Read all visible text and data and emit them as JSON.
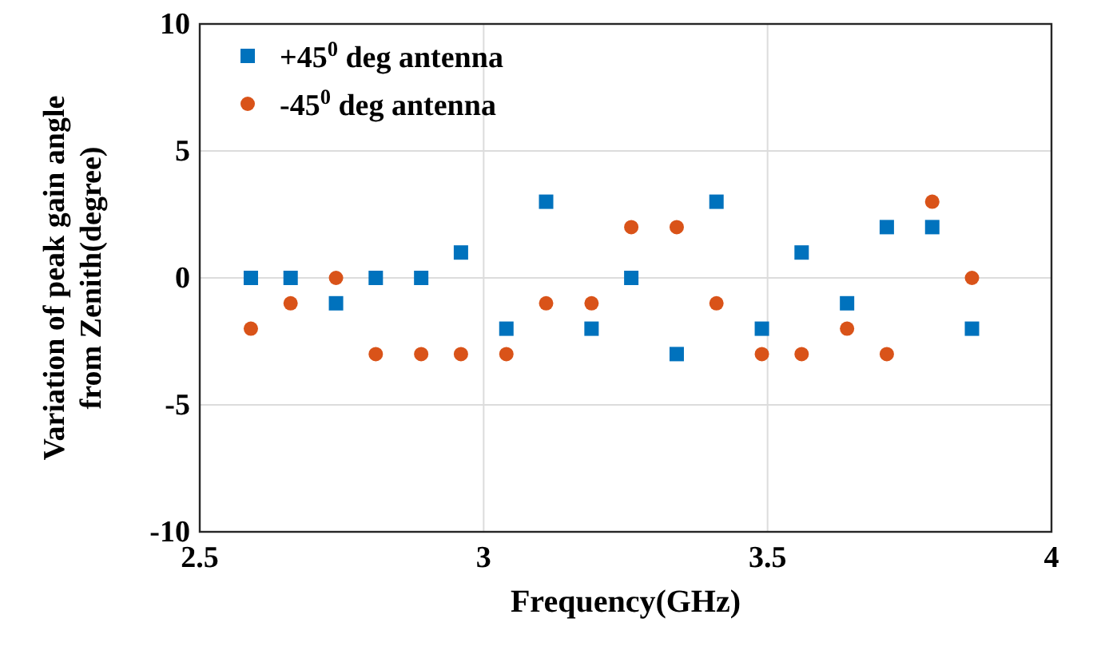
{
  "chart_data": {
    "type": "scatter",
    "xlabel": "Frequency(GHz)",
    "ylabel": "Variation of peak gain angle\nfrom Zenith(degree)",
    "x": [
      2.59,
      2.66,
      2.74,
      2.81,
      2.89,
      2.96,
      3.04,
      3.11,
      3.19,
      3.26,
      3.34,
      3.41,
      3.49,
      3.56,
      3.64,
      3.71,
      3.79,
      3.86
    ],
    "xlim": [
      2.5,
      4
    ],
    "xticks": [
      {
        "value": 2.5,
        "label": "2.5"
      },
      3,
      {
        "value": 3.5,
        "label": "3.5"
      },
      4
    ],
    "ylim": [
      -10,
      10
    ],
    "yticks": [
      -10,
      -5,
      0,
      5,
      10
    ],
    "grid": true,
    "legend": "top left",
    "series": [
      {
        "name": "+45$^{0}$ deg antenna",
        "color": "#0072bd",
        "marker": "square",
        "values": [
          0,
          0,
          -1,
          0,
          0,
          1,
          -2,
          3,
          -2,
          0,
          -3,
          3,
          -2,
          1,
          -1,
          2,
          2,
          -2
        ]
      },
      {
        "name": "-45$^{0}$ deg antenna",
        "color": "#d95319",
        "marker": "circle",
        "values": [
          -2,
          -1,
          0,
          -3,
          -3,
          -3,
          -3,
          -1,
          -1,
          2,
          2,
          -1,
          -3,
          -3,
          -2,
          -3,
          3,
          0
        ]
      }
    ]
  }
}
